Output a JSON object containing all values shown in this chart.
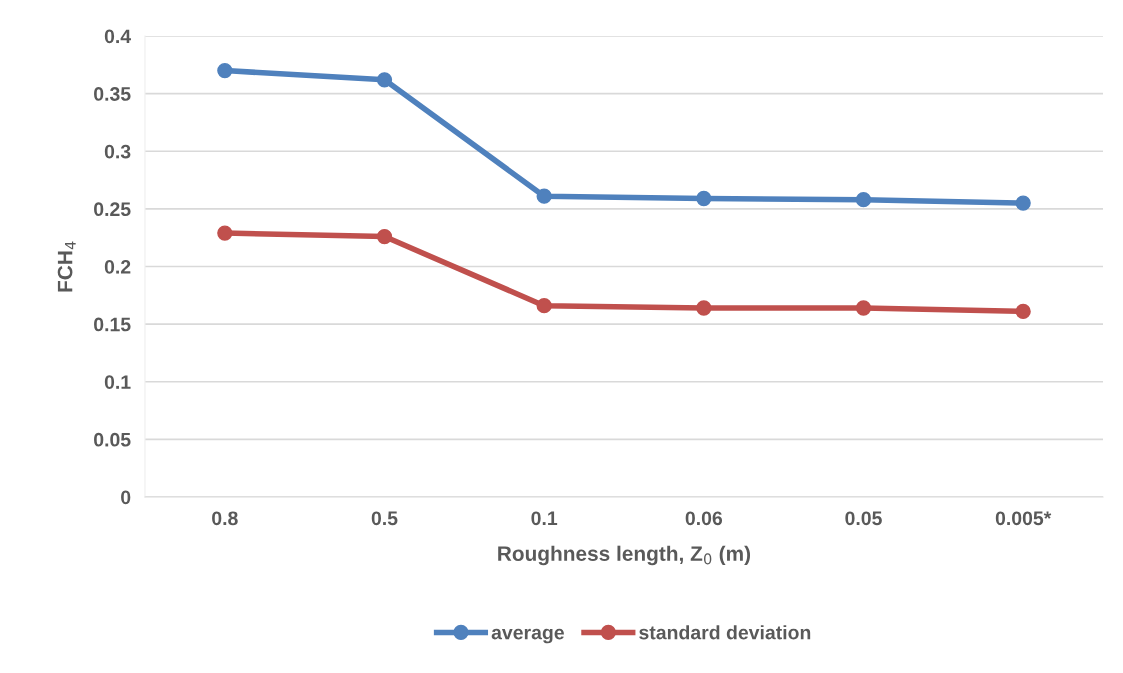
{
  "chart_data": {
    "type": "line",
    "xlabel": "Roughness length, Z$_{0}$ (m)",
    "ylabel": "FCH$_{4}$",
    "categories": [
      "0.8",
      "0.5",
      "0.1",
      "0.06",
      "0.05",
      "0.005*"
    ],
    "series": [
      {
        "name": "average",
        "color": "#4f81bd",
        "values": [
          0.37,
          0.362,
          0.261,
          0.259,
          0.258,
          0.255
        ]
      },
      {
        "name": "standard deviation",
        "color": "#c0504d",
        "values": [
          0.229,
          0.226,
          0.166,
          0.164,
          0.164,
          0.161
        ]
      }
    ],
    "ylim": [
      0,
      0.4
    ],
    "yticks": [
      0,
      {
        "value": 0.05,
        "label": "0.05"
      },
      {
        "value": 0.1,
        "label": "0.1"
      },
      {
        "value": 0.15,
        "label": "0.15"
      },
      {
        "value": 0.2,
        "label": "0.2"
      },
      {
        "value": 0.25,
        "label": "0.25"
      },
      {
        "value": 0.3,
        "label": "0.3"
      },
      {
        "value": 0.35,
        "label": "0.35"
      },
      {
        "value": 0.4,
        "label": "0.4"
      }
    ],
    "grid": "y",
    "legend": "bottom",
    "marker": "circle",
    "line_style": "solid"
  }
}
